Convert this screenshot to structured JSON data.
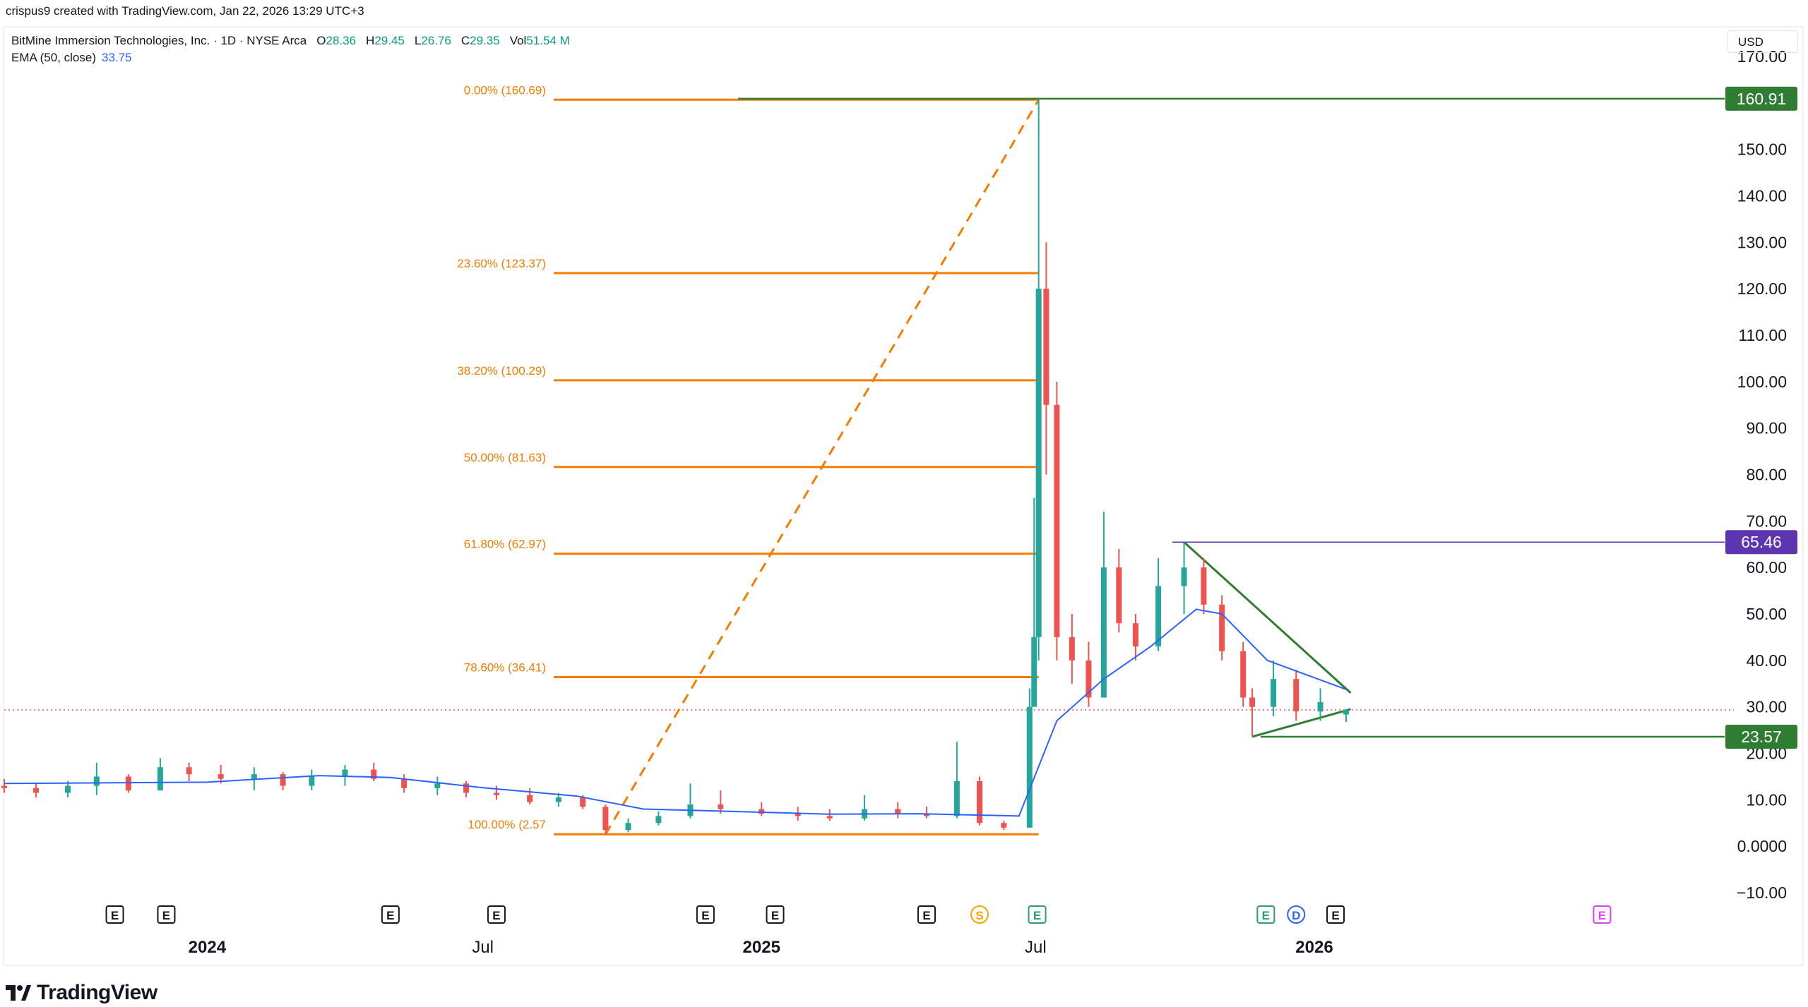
{
  "header": {
    "created_line": "crispus9 created with TradingView.com, Jan 22, 2026 13:29 UTC+3"
  },
  "legend": {
    "title": "BitMine Immersion Technologies, Inc. · 1D · NYSE Arca",
    "open_label": "O",
    "open": "28.36",
    "high_label": "H",
    "high": "29.45",
    "low_label": "L",
    "low": "26.76",
    "close_label": "C",
    "close": "29.35",
    "vol_label": "Vol",
    "vol": "51.54 M",
    "ema_label": "EMA (50, close)",
    "ema_value": "33.75"
  },
  "currency": "USD",
  "brand": "TradingView",
  "chart_data": {
    "type": "candlestick",
    "symbol": "BMNR",
    "interval": "1D",
    "exchange": "NYSE Arca",
    "ylim": [
      -10,
      170
    ],
    "y_ticks": [
      "170.00",
      "160.00",
      "150.00",
      "140.00",
      "130.00",
      "120.00",
      "110.00",
      "100.00",
      "90.00",
      "80.00",
      "70.00",
      "60.00",
      "50.00",
      "40.00",
      "30.00",
      "20.00",
      "10.00",
      "0.0000",
      "−10.00"
    ],
    "x_ticks": [
      {
        "label": "2024",
        "date": "2024-01-01",
        "bold": true
      },
      {
        "label": "Jul",
        "date": "2024-07-01",
        "bold": false
      },
      {
        "label": "2025",
        "date": "2025-01-01",
        "bold": true
      },
      {
        "label": "Jul",
        "date": "2025-07-01",
        "bold": false
      },
      {
        "label": "2026",
        "date": "2026-01-01",
        "bold": true
      }
    ],
    "x_range": [
      "2023-08-20",
      "2026-10-05"
    ],
    "candles_approx": [
      {
        "date": "2023-08-20",
        "o": 13,
        "h": 14.5,
        "l": 11.5,
        "c": 12.5
      },
      {
        "date": "2023-09-10",
        "o": 12.5,
        "h": 13.5,
        "l": 10.5,
        "c": 11.5
      },
      {
        "date": "2023-10-01",
        "o": 11.5,
        "h": 14,
        "l": 10.5,
        "c": 13
      },
      {
        "date": "2023-10-20",
        "o": 13,
        "h": 18,
        "l": 11,
        "c": 15
      },
      {
        "date": "2023-11-10",
        "o": 15,
        "h": 15.5,
        "l": 11.5,
        "c": 12
      },
      {
        "date": "2023-12-01",
        "o": 12,
        "h": 19,
        "l": 12,
        "c": 17
      },
      {
        "date": "2023-12-20",
        "o": 17,
        "h": 18,
        "l": 14,
        "c": 15.5
      },
      {
        "date": "2024-01-10",
        "o": 15.5,
        "h": 17.5,
        "l": 13.5,
        "c": 14.5
      },
      {
        "date": "2024-02-01",
        "o": 14.5,
        "h": 17,
        "l": 12,
        "c": 15.5
      },
      {
        "date": "2024-02-20",
        "o": 15.5,
        "h": 16,
        "l": 12,
        "c": 13
      },
      {
        "date": "2024-03-10",
        "o": 13,
        "h": 16.5,
        "l": 12,
        "c": 15
      },
      {
        "date": "2024-04-01",
        "o": 15,
        "h": 17.5,
        "l": 13,
        "c": 16.5
      },
      {
        "date": "2024-04-20",
        "o": 16.5,
        "h": 18,
        "l": 14,
        "c": 14.5
      },
      {
        "date": "2024-05-10",
        "o": 14.5,
        "h": 15.5,
        "l": 11.5,
        "c": 12.5
      },
      {
        "date": "2024-06-01",
        "o": 12.5,
        "h": 15,
        "l": 11,
        "c": 13.5
      },
      {
        "date": "2024-06-20",
        "o": 13.5,
        "h": 14,
        "l": 10.5,
        "c": 11.5
      },
      {
        "date": "2024-07-10",
        "o": 11.5,
        "h": 13,
        "l": 10,
        "c": 11
      },
      {
        "date": "2024-08-01",
        "o": 11,
        "h": 12.5,
        "l": 9,
        "c": 9.5
      },
      {
        "date": "2024-08-20",
        "o": 9.5,
        "h": 11.5,
        "l": 8.5,
        "c": 10.5
      },
      {
        "date": "2024-09-05",
        "o": 10.5,
        "h": 11,
        "l": 8,
        "c": 8.5
      },
      {
        "date": "2024-09-20",
        "o": 8.5,
        "h": 9,
        "l": 2.57,
        "c": 3.5
      },
      {
        "date": "2024-10-05",
        "o": 3.5,
        "h": 6,
        "l": 3,
        "c": 5
      },
      {
        "date": "2024-10-25",
        "o": 5,
        "h": 7.5,
        "l": 4.5,
        "c": 6.5
      },
      {
        "date": "2024-11-15",
        "o": 6.5,
        "h": 13.5,
        "l": 6,
        "c": 9
      },
      {
        "date": "2024-12-05",
        "o": 9,
        "h": 12,
        "l": 7,
        "c": 8
      },
      {
        "date": "2025-01-01",
        "o": 8,
        "h": 9.5,
        "l": 6.5,
        "c": 7
      },
      {
        "date": "2025-01-25",
        "o": 7,
        "h": 8.5,
        "l": 5.5,
        "c": 6.5
      },
      {
        "date": "2025-02-15",
        "o": 6.5,
        "h": 8,
        "l": 5.5,
        "c": 6
      },
      {
        "date": "2025-03-10",
        "o": 6,
        "h": 11,
        "l": 5.5,
        "c": 8
      },
      {
        "date": "2025-04-01",
        "o": 8,
        "h": 9.5,
        "l": 6,
        "c": 7
      },
      {
        "date": "2025-04-20",
        "o": 7,
        "h": 8.5,
        "l": 6,
        "c": 6.5
      },
      {
        "date": "2025-05-10",
        "o": 6.5,
        "h": 22.5,
        "l": 6,
        "c": 14
      },
      {
        "date": "2025-05-25",
        "o": 14,
        "h": 15,
        "l": 4.5,
        "c": 5
      },
      {
        "date": "2025-06-10",
        "o": 5,
        "h": 5.5,
        "l": 3.5,
        "c": 4
      },
      {
        "date": "2025-06-27",
        "o": 4,
        "h": 34,
        "l": 4,
        "c": 30
      },
      {
        "date": "2025-06-30",
        "o": 30,
        "h": 75,
        "l": 30,
        "c": 45
      },
      {
        "date": "2025-07-03",
        "o": 45,
        "h": 160.91,
        "l": 40,
        "c": 120
      },
      {
        "date": "2025-07-08",
        "o": 120,
        "h": 130,
        "l": 80,
        "c": 95
      },
      {
        "date": "2025-07-15",
        "o": 95,
        "h": 100,
        "l": 40,
        "c": 45
      },
      {
        "date": "2025-07-25",
        "o": 45,
        "h": 50,
        "l": 35,
        "c": 40
      },
      {
        "date": "2025-08-05",
        "o": 40,
        "h": 44,
        "l": 30,
        "c": 32
      },
      {
        "date": "2025-08-15",
        "o": 32,
        "h": 72,
        "l": 32,
        "c": 60
      },
      {
        "date": "2025-08-25",
        "o": 60,
        "h": 64,
        "l": 46,
        "c": 48
      },
      {
        "date": "2025-09-05",
        "o": 48,
        "h": 50,
        "l": 40,
        "c": 43
      },
      {
        "date": "2025-09-20",
        "o": 43,
        "h": 62,
        "l": 42,
        "c": 56
      },
      {
        "date": "2025-10-07",
        "o": 56,
        "h": 65.46,
        "l": 50,
        "c": 60
      },
      {
        "date": "2025-10-20",
        "o": 60,
        "h": 62,
        "l": 50,
        "c": 52
      },
      {
        "date": "2025-11-01",
        "o": 52,
        "h": 54,
        "l": 40,
        "c": 42
      },
      {
        "date": "2025-11-15",
        "o": 42,
        "h": 44,
        "l": 30,
        "c": 32
      },
      {
        "date": "2025-11-21",
        "o": 32,
        "h": 34,
        "l": 23.57,
        "c": 30
      },
      {
        "date": "2025-12-05",
        "o": 30,
        "h": 40,
        "l": 28,
        "c": 36
      },
      {
        "date": "2025-12-20",
        "o": 36,
        "h": 38,
        "l": 27,
        "c": 29
      },
      {
        "date": "2026-01-05",
        "o": 29,
        "h": 34,
        "l": 27,
        "c": 31
      },
      {
        "date": "2026-01-22",
        "o": 28.36,
        "h": 29.45,
        "l": 26.76,
        "c": 29.35
      }
    ],
    "current_price": 29.35,
    "ema": {
      "name": "EMA (50, close)",
      "color": "#2962ff",
      "last_value": 33.75,
      "points": [
        {
          "date": "2023-08-20",
          "v": 13.5
        },
        {
          "date": "2024-01-01",
          "v": 13.8
        },
        {
          "date": "2024-03-15",
          "v": 15.2
        },
        {
          "date": "2024-05-01",
          "v": 14.8
        },
        {
          "date": "2024-07-01",
          "v": 12.6
        },
        {
          "date": "2024-09-01",
          "v": 10.8
        },
        {
          "date": "2024-10-15",
          "v": 8
        },
        {
          "date": "2024-12-01",
          "v": 7.6
        },
        {
          "date": "2025-02-15",
          "v": 6.9
        },
        {
          "date": "2025-04-15",
          "v": 7
        },
        {
          "date": "2025-06-20",
          "v": 6.5
        },
        {
          "date": "2025-07-15",
          "v": 27
        },
        {
          "date": "2025-08-15",
          "v": 36
        },
        {
          "date": "2025-09-15",
          "v": 43
        },
        {
          "date": "2025-10-15",
          "v": 51
        },
        {
          "date": "2025-11-01",
          "v": 50
        },
        {
          "date": "2025-12-01",
          "v": 40
        },
        {
          "date": "2026-01-22",
          "v": 33.75
        }
      ]
    },
    "fibonacci": {
      "color": "#f57c00",
      "levels": [
        {
          "ratio": "0.00%",
          "value": 160.69,
          "label": "0.00% (160.69)"
        },
        {
          "ratio": "23.60%",
          "value": 123.37,
          "label": "23.60% (123.37)"
        },
        {
          "ratio": "38.20%",
          "value": 100.29,
          "label": "38.20% (100.29)"
        },
        {
          "ratio": "50.00%",
          "value": 81.63,
          "label": "50.00% (81.63)"
        },
        {
          "ratio": "61.80%",
          "value": 62.97,
          "label": "61.80% (62.97)"
        },
        {
          "ratio": "78.60%",
          "value": 36.41,
          "label": "78.60% (36.41)"
        },
        {
          "ratio": "100.00%",
          "value": 2.57,
          "label": "100.00% (2.57"
        }
      ],
      "start_date": "2024-09-20",
      "end_date": "2025-07-03"
    },
    "horizontal_lines": [
      {
        "value": 160.91,
        "label": "160.91",
        "color": "#2e7d32"
      },
      {
        "value": 65.46,
        "label": "65.46",
        "color": "#5e35b1"
      },
      {
        "value": 23.57,
        "label": "23.57",
        "color": "#2e7d32"
      }
    ],
    "trendlines": [
      {
        "from": {
          "date": "2025-10-07",
          "v": 65.46
        },
        "to": {
          "date": "2026-01-25",
          "v": 33
        },
        "color": "#2e7d32"
      },
      {
        "from": {
          "date": "2025-11-21",
          "v": 23.57
        },
        "to": {
          "date": "2026-01-25",
          "v": 29.5
        },
        "color": "#2e7d32"
      }
    ],
    "events": [
      {
        "type": "E",
        "date": "2023-11-01",
        "color": "#131722"
      },
      {
        "type": "E",
        "date": "2023-12-05",
        "color": "#131722"
      },
      {
        "type": "E",
        "date": "2024-05-01",
        "color": "#131722"
      },
      {
        "type": "E",
        "date": "2024-07-10",
        "color": "#131722"
      },
      {
        "type": "E",
        "date": "2024-11-25",
        "color": "#131722"
      },
      {
        "type": "E",
        "date": "2025-01-10",
        "color": "#131722"
      },
      {
        "type": "E",
        "date": "2025-04-20",
        "color": "#131722"
      },
      {
        "type": "S",
        "date": "2025-05-25",
        "color": "#f7a600"
      },
      {
        "type": "E",
        "date": "2025-07-02",
        "color": "#2e9e6a"
      },
      {
        "type": "E",
        "date": "2025-11-30",
        "color": "#2e9e6a"
      },
      {
        "type": "D",
        "date": "2025-12-20",
        "color": "#2962ff"
      },
      {
        "type": "E",
        "date": "2026-01-15",
        "color": "#131722"
      },
      {
        "type": "E",
        "date": "2026-07-10",
        "color": "#e040fb"
      }
    ]
  }
}
